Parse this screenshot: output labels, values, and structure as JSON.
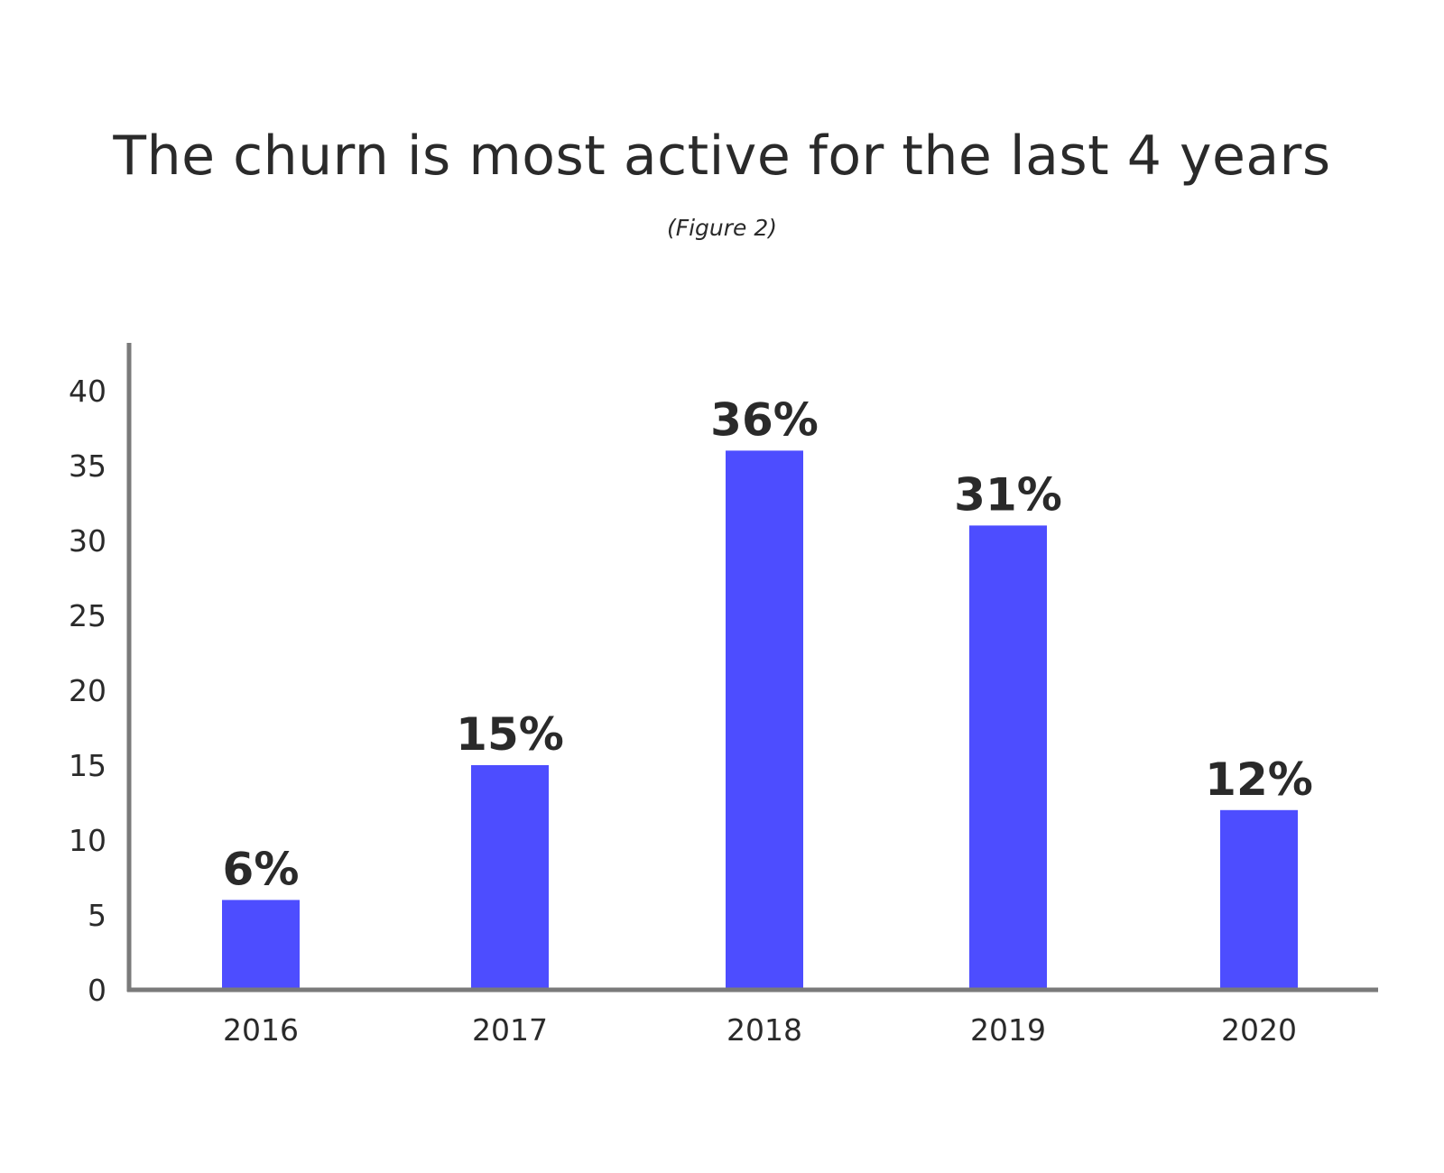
{
  "chart_data": {
    "type": "bar",
    "title": "The churn is most active for the last 4 years",
    "subtitle": "(Figure 2)",
    "categories": [
      "2016",
      "2017",
      "2018",
      "2019",
      "2020"
    ],
    "values": [
      6,
      15,
      36,
      31,
      12
    ],
    "data_labels": [
      "6%",
      "15%",
      "36%",
      "31%",
      "12%"
    ],
    "ylim": [
      0,
      43
    ],
    "yticks": [
      0,
      5,
      10,
      15,
      20,
      25,
      30,
      35,
      40
    ],
    "xlabel": "",
    "ylabel": "",
    "grid": false,
    "bar_color": "#4d4dff",
    "axis_color": "#7a7a7a"
  }
}
